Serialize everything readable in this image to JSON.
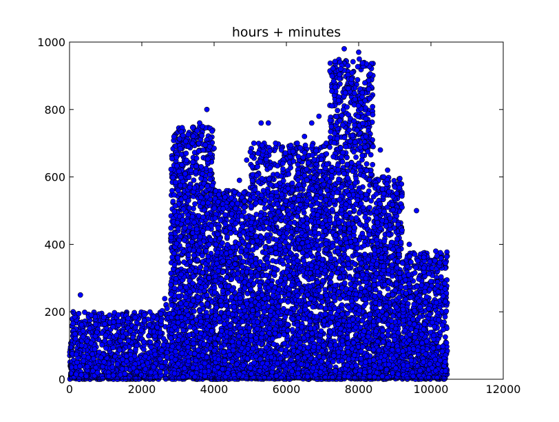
{
  "chart_data": {
    "type": "scatter",
    "title": "hours + minutes",
    "xlabel": "",
    "ylabel": "",
    "xlim": [
      0,
      12000
    ],
    "ylim": [
      0,
      1000
    ],
    "x_ticks": [
      0,
      2000,
      4000,
      6000,
      8000,
      10000,
      12000
    ],
    "y_ticks": [
      0,
      200,
      400,
      600,
      800,
      1000
    ],
    "grid": false,
    "marker_color": "#0000ff",
    "marker_edge": "#000000",
    "series": [
      {
        "x": [
          100,
          300,
          600,
          1000,
          1300,
          1700,
          2100,
          2500,
          2700,
          3000,
          3200,
          3400,
          3600,
          3700,
          3800,
          3900,
          4100,
          4300,
          4500,
          4700,
          4900,
          5100,
          5300,
          5500,
          5700,
          5900,
          6100,
          6300,
          6500,
          6700,
          6900,
          7100,
          7300,
          7500,
          7600,
          7700,
          7800,
          7900,
          8000,
          8100,
          8200,
          8400,
          8600,
          8800,
          9000,
          9200,
          9400,
          9600,
          9800,
          10000,
          10200,
          10400
        ],
        "y": [
          200,
          250,
          190,
          130,
          130,
          60,
          30,
          60,
          210,
          560,
          540,
          700,
          760,
          680,
          800,
          620,
          430,
          540,
          520,
          590,
          650,
          700,
          760,
          760,
          700,
          640,
          660,
          700,
          720,
          760,
          780,
          700,
          660,
          920,
          980,
          930,
          890,
          830,
          970,
          850,
          720,
          690,
          680,
          620,
          570,
          510,
          400,
          500,
          330,
          290,
          260,
          230
        ]
      }
    ],
    "cloud": [
      {
        "x0": 0,
        "x1": 2500,
        "y0": 0,
        "y1": 200,
        "n": 900
      },
      {
        "x0": 2500,
        "x1": 2800,
        "y0": 0,
        "y1": 240,
        "n": 80
      },
      {
        "x0": 2800,
        "x1": 4000,
        "y0": 0,
        "y1": 750,
        "n": 1300
      },
      {
        "x0": 4000,
        "x1": 5000,
        "y0": 0,
        "y1": 560,
        "n": 900
      },
      {
        "x0": 5000,
        "x1": 6300,
        "y0": 0,
        "y1": 700,
        "n": 1200
      },
      {
        "x0": 6300,
        "x1": 7200,
        "y0": 0,
        "y1": 700,
        "n": 900
      },
      {
        "x0": 7200,
        "x1": 8400,
        "y0": 0,
        "y1": 950,
        "n": 1400
      },
      {
        "x0": 8400,
        "x1": 9200,
        "y0": 0,
        "y1": 600,
        "n": 800
      },
      {
        "x0": 9200,
        "x1": 10450,
        "y0": 0,
        "y1": 380,
        "n": 800
      }
    ]
  }
}
